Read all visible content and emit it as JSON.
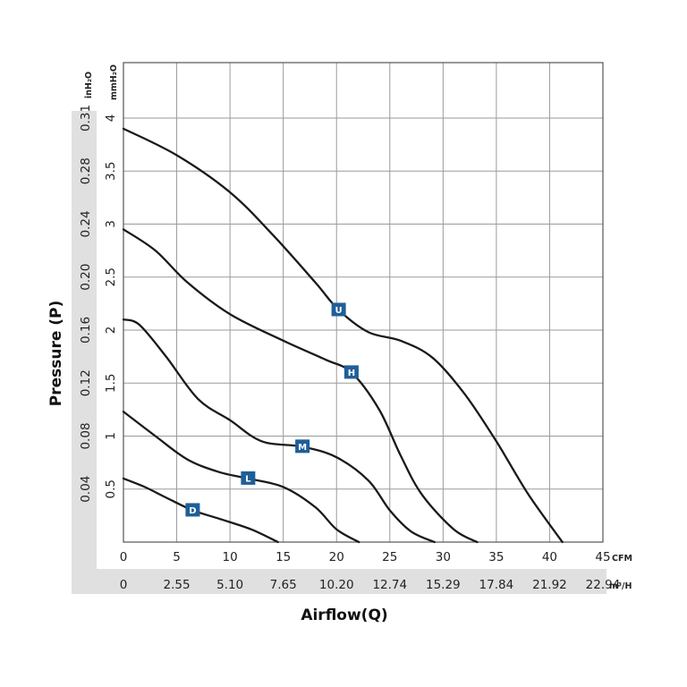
{
  "chart_data": {
    "type": "line",
    "title": "",
    "xlabel": "Airflow(Q)",
    "ylabel": "Pressure (P)",
    "x_unit": "CFM",
    "x2_unit": "m³/H",
    "y_unit": "mmH₂O",
    "y2_unit": "inH₂O",
    "xlim": [
      0,
      45
    ],
    "ylim": [
      0,
      4
    ],
    "grid": true,
    "x_ticks": [
      "0",
      "5",
      "10",
      "15",
      "20",
      "25",
      "30",
      "35",
      "40",
      "45"
    ],
    "x2_ticks": [
      "0",
      "2.55",
      "5.10",
      "7.65",
      "10.20",
      "12.74",
      "15.29",
      "17.84",
      "21.92",
      "22.94"
    ],
    "y_ticks": [
      "0.5",
      "1",
      "1.5",
      "2",
      "2.5",
      "3",
      "3.5",
      "4"
    ],
    "y2_ticks": [
      "0.04",
      "0.08",
      "0.12",
      "0.16",
      "0.20",
      "0.24",
      "0.28",
      "0.31"
    ],
    "colors": {
      "curve": "#1a1a1a",
      "badge": "#1f5f97",
      "band": "#e0e0e0",
      "grid": "#9a9a9a"
    },
    "series": [
      {
        "name": "U",
        "label_at": [
          20.2,
          2.19
        ],
        "x": [
          0,
          5,
          10,
          14,
          18,
          20.2,
          23,
          26,
          29,
          32,
          35,
          38,
          41.2
        ],
        "y": [
          3.9,
          3.65,
          3.3,
          2.9,
          2.45,
          2.19,
          1.98,
          1.9,
          1.74,
          1.4,
          0.95,
          0.45,
          0
        ]
      },
      {
        "name": "H",
        "label_at": [
          21.4,
          1.6
        ],
        "x": [
          0,
          3,
          6,
          10,
          15,
          19,
          21.4,
          24,
          26,
          28,
          31,
          33.2
        ],
        "y": [
          2.95,
          2.75,
          2.45,
          2.15,
          1.9,
          1.72,
          1.6,
          1.25,
          0.82,
          0.45,
          0.12,
          0
        ]
      },
      {
        "name": "M",
        "label_at": [
          16.8,
          0.9
        ],
        "x": [
          0,
          1.5,
          4,
          7,
          10,
          13,
          16.8,
          20,
          23,
          25,
          27,
          29.2
        ],
        "y": [
          2.1,
          2.05,
          1.75,
          1.35,
          1.15,
          0.95,
          0.9,
          0.8,
          0.58,
          0.3,
          0.1,
          0
        ]
      },
      {
        "name": "L",
        "label_at": [
          11.7,
          0.6
        ],
        "x": [
          0,
          3,
          6,
          9,
          11.7,
          15,
          18,
          20,
          22.1
        ],
        "y": [
          1.23,
          1.0,
          0.78,
          0.66,
          0.6,
          0.52,
          0.33,
          0.12,
          0
        ]
      },
      {
        "name": "D",
        "label_at": [
          6.5,
          0.3
        ],
        "x": [
          0,
          2,
          4,
          6.5,
          9,
          12,
          14.5
        ],
        "y": [
          0.6,
          0.52,
          0.42,
          0.3,
          0.22,
          0.12,
          0
        ]
      }
    ]
  }
}
